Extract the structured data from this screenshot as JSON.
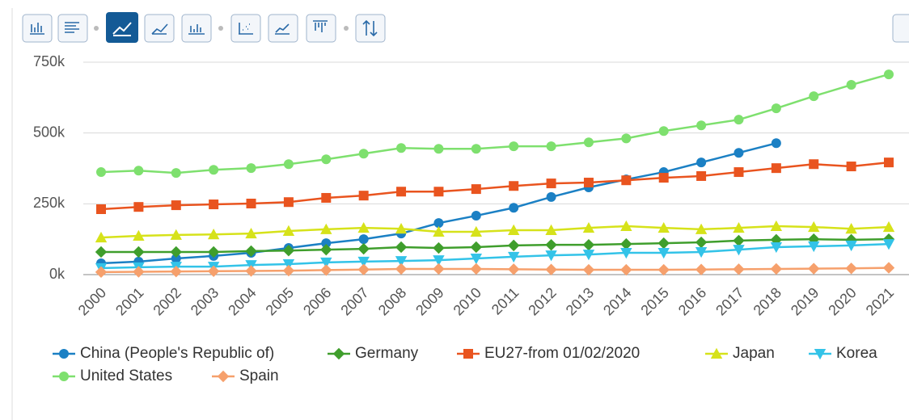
{
  "chart_data": {
    "type": "line",
    "categories": [
      "2000",
      "2001",
      "2002",
      "2003",
      "2004",
      "2005",
      "2006",
      "2007",
      "2008",
      "2009",
      "2010",
      "2011",
      "2012",
      "2013",
      "2014",
      "2015",
      "2016",
      "2017",
      "2018",
      "2019",
      "2020",
      "2021"
    ],
    "ylim": [
      0,
      750000
    ],
    "yticks": [
      {
        "value": 0,
        "label": "0k"
      },
      {
        "value": 250000,
        "label": "250k"
      },
      {
        "value": 500000,
        "label": "500k"
      },
      {
        "value": 750000,
        "label": "750k"
      }
    ],
    "grid": true,
    "legend": "bottom",
    "series": [
      {
        "name": "China (People's Republic of)",
        "color": "#1b80c4",
        "marker": "circle",
        "values": [
          40000,
          46000,
          57000,
          66000,
          77000,
          94000,
          111000,
          125000,
          145000,
          182000,
          208000,
          236000,
          274000,
          308000,
          336000,
          362000,
          396000,
          430000,
          464000,
          null,
          null,
          null
        ]
      },
      {
        "name": "Germany",
        "color": "#3f9e2c",
        "marker": "diamond",
        "values": [
          80000,
          80000,
          80000,
          80000,
          83000,
          85000,
          88000,
          91000,
          97000,
          94000,
          97000,
          103000,
          105000,
          105000,
          108000,
          111000,
          114000,
          120000,
          123000,
          125000,
          123000,
          125000
        ]
      },
      {
        "name": "EU27-from 01/02/2020",
        "color": "#e9541f",
        "marker": "square",
        "values": [
          231000,
          239000,
          245000,
          248000,
          251000,
          256000,
          271000,
          279000,
          293000,
          293000,
          302000,
          313000,
          322000,
          325000,
          333000,
          342000,
          348000,
          362000,
          376000,
          390000,
          382000,
          396000
        ]
      },
      {
        "name": "Japan",
        "color": "#d6e21a",
        "marker": "triangle",
        "values": [
          131000,
          137000,
          140000,
          142000,
          145000,
          154000,
          160000,
          165000,
          162000,
          151000,
          151000,
          157000,
          157000,
          165000,
          171000,
          165000,
          160000,
          165000,
          171000,
          168000,
          162000,
          168000
        ]
      },
      {
        "name": "Korea",
        "color": "#33c3e8",
        "marker": "triangle-down",
        "values": [
          23000,
          26000,
          28000,
          28000,
          34000,
          37000,
          43000,
          46000,
          48000,
          51000,
          57000,
          63000,
          68000,
          71000,
          77000,
          77000,
          80000,
          88000,
          97000,
          100000,
          103000,
          108000
        ]
      },
      {
        "name": "United States",
        "color": "#7ee06e",
        "marker": "circle",
        "values": [
          362000,
          367000,
          359000,
          370000,
          376000,
          390000,
          407000,
          427000,
          447000,
          444000,
          444000,
          453000,
          453000,
          467000,
          481000,
          507000,
          527000,
          547000,
          587000,
          630000,
          670000,
          707000
        ]
      },
      {
        "name": "Spain",
        "color": "#f6a06c",
        "marker": "diamond",
        "values": [
          9000,
          10000,
          11000,
          12000,
          13000,
          14000,
          16000,
          18000,
          20000,
          20000,
          20000,
          19000,
          18000,
          17000,
          17000,
          17000,
          18000,
          19000,
          20000,
          21000,
          22000,
          24000
        ]
      }
    ]
  }
}
